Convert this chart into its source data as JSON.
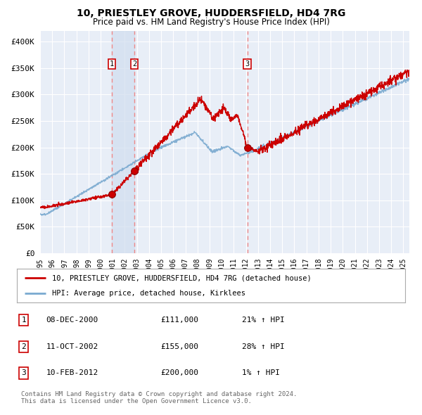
{
  "title1": "10, PRIESTLEY GROVE, HUDDERSFIELD, HD4 7RG",
  "title2": "Price paid vs. HM Land Registry's House Price Index (HPI)",
  "ylabel_ticks": [
    "£0",
    "£50K",
    "£100K",
    "£150K",
    "£200K",
    "£250K",
    "£300K",
    "£350K",
    "£400K"
  ],
  "ytick_vals": [
    0,
    50000,
    100000,
    150000,
    200000,
    250000,
    300000,
    350000,
    400000
  ],
  "ylim": [
    0,
    420000
  ],
  "xlim_start": 1995.0,
  "xlim_end": 2025.5,
  "sale_dates": [
    2000.93,
    2002.78,
    2012.11
  ],
  "sale_prices": [
    111000,
    155000,
    200000
  ],
  "sale_labels": [
    "1",
    "2",
    "3"
  ],
  "line_color_red": "#CC0000",
  "line_color_blue": "#7AAAD0",
  "background_color": "#FFFFFF",
  "plot_bg_color": "#E8EEF7",
  "grid_color": "#FFFFFF",
  "highlight_bg_color": "#D0DDEF",
  "dashed_line_color": "#EE8888",
  "legend_line1": "10, PRIESTLEY GROVE, HUDDERSFIELD, HD4 7RG (detached house)",
  "legend_line2": "HPI: Average price, detached house, Kirklees",
  "table_entries": [
    {
      "num": "1",
      "date": "08-DEC-2000",
      "price": "£111,000",
      "pct": "21% ↑ HPI"
    },
    {
      "num": "2",
      "date": "11-OCT-2002",
      "price": "£155,000",
      "pct": "28% ↑ HPI"
    },
    {
      "num": "3",
      "date": "10-FEB-2012",
      "price": "£200,000",
      "pct": "1% ↑ HPI"
    }
  ],
  "footer": "Contains HM Land Registry data © Crown copyright and database right 2024.\nThis data is licensed under the Open Government Licence v3.0.",
  "xtick_years": [
    1995,
    1996,
    1997,
    1998,
    1999,
    2000,
    2001,
    2002,
    2003,
    2004,
    2005,
    2006,
    2007,
    2008,
    2009,
    2010,
    2011,
    2012,
    2013,
    2014,
    2015,
    2016,
    2017,
    2018,
    2019,
    2020,
    2021,
    2022,
    2023,
    2024,
    2025
  ]
}
